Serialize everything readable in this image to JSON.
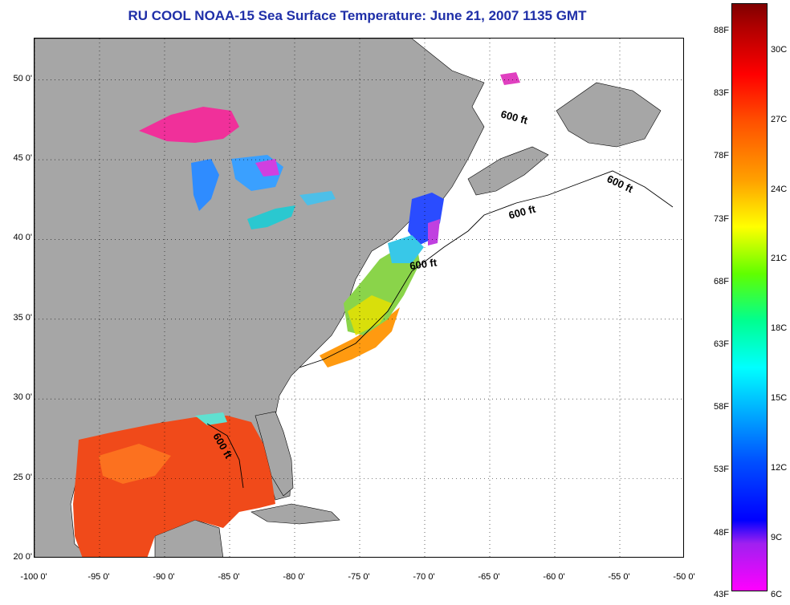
{
  "title": "RU COOL  NOAA-15  Sea Surface Temperature:  June 21, 2007 1135 GMT",
  "latitude_ticks": [
    {
      "label": "50 0'",
      "lat": 50
    },
    {
      "label": "45 0'",
      "lat": 45
    },
    {
      "label": "40 0'",
      "lat": 40
    },
    {
      "label": "35 0'",
      "lat": 35
    },
    {
      "label": "30 0'",
      "lat": 30
    },
    {
      "label": "25 0'",
      "lat": 25
    },
    {
      "label": "20 0'",
      "lat": 20
    }
  ],
  "longitude_ticks": [
    {
      "label": "-100 0'",
      "lon": -100
    },
    {
      "label": "-95 0'",
      "lon": -95
    },
    {
      "label": "-90 0'",
      "lon": -90
    },
    {
      "label": "-85 0'",
      "lon": -85
    },
    {
      "label": "-80 0'",
      "lon": -80
    },
    {
      "label": "-75 0'",
      "lon": -75
    },
    {
      "label": "-70 0'",
      "lon": -70
    },
    {
      "label": "-65 0'",
      "lon": -65
    },
    {
      "label": "-60 0'",
      "lon": -60
    },
    {
      "label": "-55 0'",
      "lon": -55
    },
    {
      "label": "-50 0'",
      "lon": -50
    }
  ],
  "colorbar": {
    "fahrenheit": [
      "88F",
      "83F",
      "78F",
      "73F",
      "68F",
      "63F",
      "58F",
      "53F",
      "48F",
      "43F"
    ],
    "celsius": [
      "30C",
      "27C",
      "24C",
      "21C",
      "18C",
      "15C",
      "12C",
      "9C",
      "6C"
    ]
  },
  "contour_labels": [
    "600 ft",
    "600 ft",
    "600 ft",
    "600 ft",
    "600 ft"
  ],
  "colors": {
    "land": "#a6a6a6",
    "title": "#1f2fa8",
    "gulf_warm": "#f04a1a",
    "no_data": "#ffffff"
  }
}
